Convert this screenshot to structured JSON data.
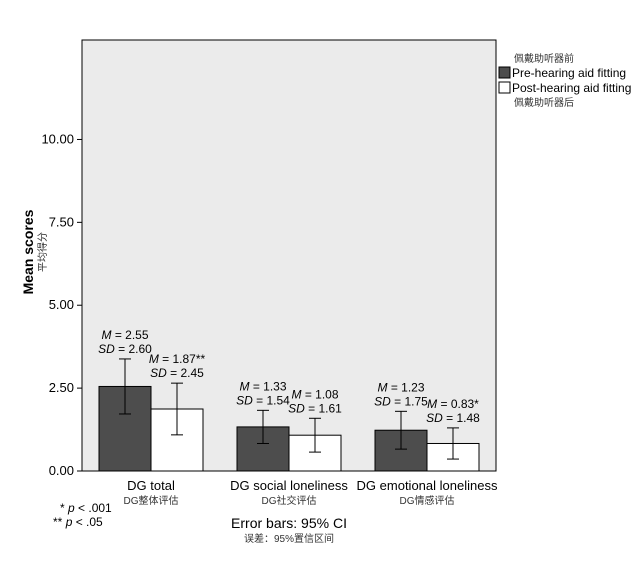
{
  "chart_data": {
    "type": "bar",
    "ylabel": "Mean scores",
    "ylabel_sub": "平均得分",
    "ylim": [
      0,
      13.0
    ],
    "yticks": [
      0,
      2.5,
      5.0,
      7.5,
      10.0
    ],
    "ytick_labels": [
      "0.00",
      "2.50",
      "5.00",
      "7.50",
      "10.00"
    ],
    "grid": false,
    "categories": [
      "DG total",
      "DG social loneliness",
      "DG emotional loneliness"
    ],
    "category_subs": [
      "DG整体评估",
      "DG社交评估",
      "DG情感评估"
    ],
    "legend_title": "佩戴助听器前",
    "legend_footer": "佩戴助听器后",
    "legend_position": "right",
    "series": [
      {
        "name": "Pre-hearing aid fitting",
        "color": "#4d4d4d",
        "values": [
          2.55,
          1.33,
          1.23
        ],
        "ci_low": [
          1.72,
          0.83,
          0.66
        ],
        "ci_high": [
          3.38,
          1.83,
          1.8
        ],
        "annotations": [
          [
            "M = 2.55",
            "SD = 2.60"
          ],
          [
            "M = 1.33",
            "SD = 1.54"
          ],
          [
            "M = 1.23",
            "SD = 1.75"
          ]
        ]
      },
      {
        "name": "Post-hearing aid fitting",
        "color": "#ffffff",
        "values": [
          1.87,
          1.08,
          0.83
        ],
        "ci_low": [
          1.09,
          0.57,
          0.36
        ],
        "ci_high": [
          2.65,
          1.59,
          1.3
        ],
        "annotations": [
          [
            "M = 1.87**",
            "SD = 2.45"
          ],
          [
            "M = 1.08",
            "SD = 1.61"
          ],
          [
            "M = 0.83*",
            "SD = 1.48"
          ]
        ]
      }
    ],
    "footnotes": [
      "* p < .001",
      "** p < .05"
    ],
    "caption": "Error bars: 95% CI",
    "caption_sub": "误差：95%置信区间",
    "plot_background": "#ebebeb"
  }
}
